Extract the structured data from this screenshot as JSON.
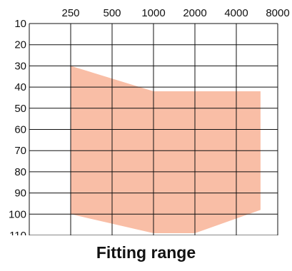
{
  "chart_data": {
    "type": "area",
    "title": "Fitting range",
    "xlabel": "",
    "ylabel": "",
    "x_scale": "log2",
    "x_ticks": [
      250,
      500,
      1000,
      2000,
      4000,
      8000
    ],
    "x_tick_labels": [
      "250",
      "500",
      "1000",
      "2000",
      "4000",
      "8000"
    ],
    "y_ticks": [
      10,
      20,
      30,
      40,
      50,
      60,
      70,
      80,
      90,
      100,
      110
    ],
    "y_tick_labels": [
      "10",
      "20",
      "30",
      "40",
      "50",
      "60",
      "70",
      "80",
      "90",
      "100",
      "110"
    ],
    "ylim": [
      10,
      110
    ],
    "y_inverted": true,
    "xlim": [
      125,
      8000
    ],
    "grid": true,
    "region": {
      "upper_boundary": [
        {
          "x": 250,
          "y": 30
        },
        {
          "x": 1000,
          "y": 42
        },
        {
          "x": 6000,
          "y": 42
        }
      ],
      "lower_boundary": [
        {
          "x": 250,
          "y": 100
        },
        {
          "x": 1000,
          "y": 109
        },
        {
          "x": 2000,
          "y": 109
        },
        {
          "x": 6000,
          "y": 98
        }
      ],
      "fill_color": "#f9bea6"
    },
    "colors": {
      "grid": "#111111",
      "text": "#111111",
      "fill": "#f9bea6"
    }
  }
}
